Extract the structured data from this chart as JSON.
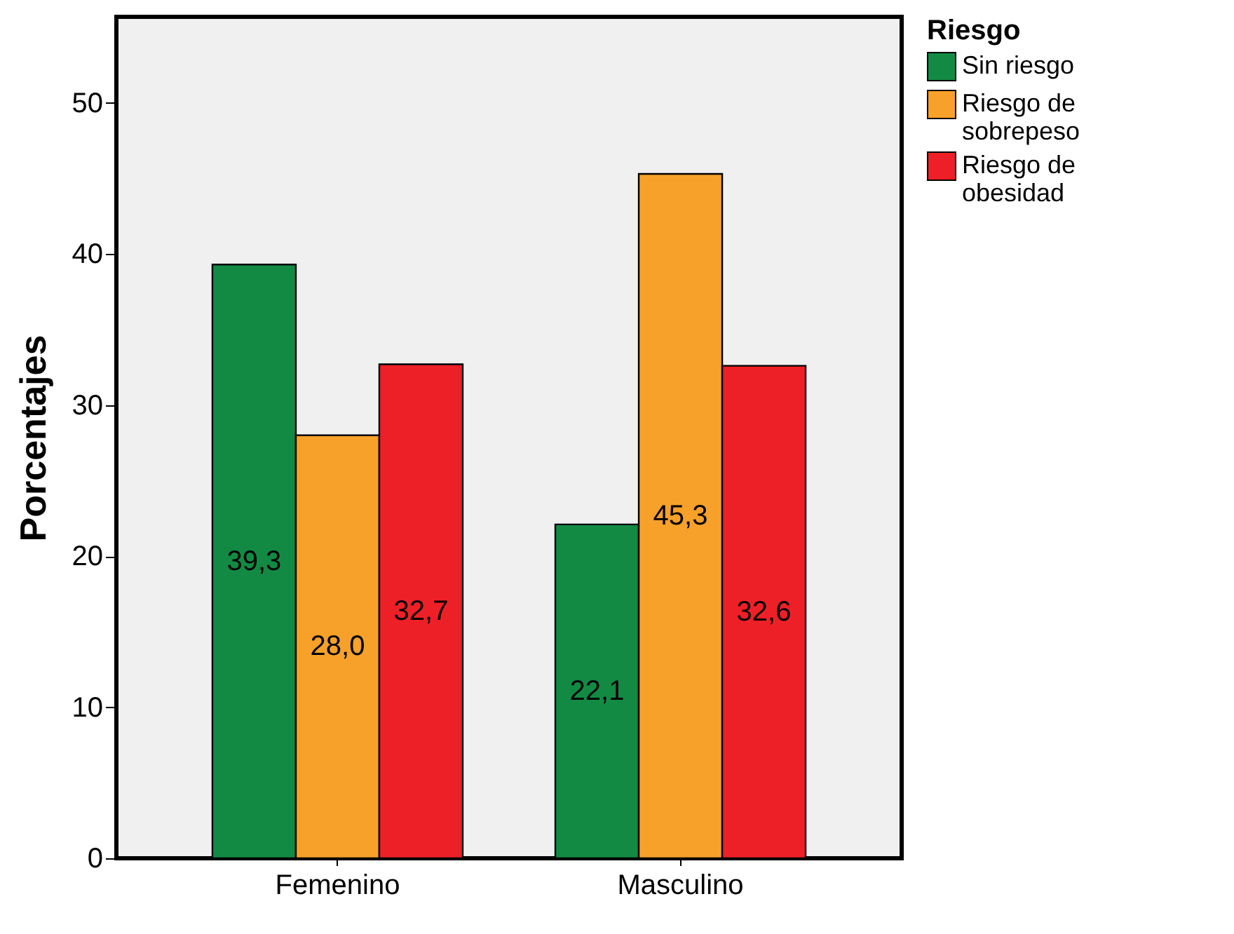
{
  "chart_data": {
    "type": "bar",
    "ylabel": "Porcentajes",
    "legend_title": "Riesgo",
    "legend": "top right",
    "grid": false,
    "categories": [
      "Femenino",
      "Masculino"
    ],
    "ylim": [
      0,
      55.7
    ],
    "yticks": [
      0,
      10,
      20,
      30,
      40,
      50
    ],
    "series": [
      {
        "name": "Sin riesgo",
        "color": "#138a44",
        "values": [
          39.3,
          22.1
        ],
        "value_labels": [
          "39,3",
          "22,1"
        ]
      },
      {
        "name": "Riesgo de sobrepeso",
        "color": "#f7a12a",
        "values": [
          28.0,
          45.3
        ],
        "value_labels": [
          "28,0",
          "45,3"
        ]
      },
      {
        "name": "Riesgo de obesidad",
        "color": "#ee2027",
        "values": [
          32.7,
          32.6
        ],
        "value_labels": [
          "32,7",
          "32,6"
        ]
      }
    ]
  }
}
